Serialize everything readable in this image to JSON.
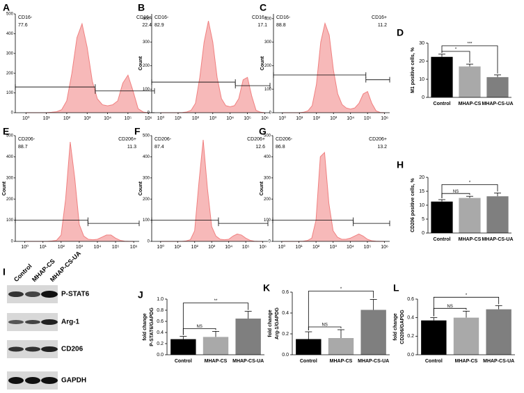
{
  "chart_data": [
    {
      "panel": "A",
      "type": "area",
      "x": [
        1,
        1.778,
        3.162,
        5.623,
        10,
        17.78,
        31.62,
        56.23,
        100,
        177.8,
        316.2,
        562.3,
        1000,
        1778,
        3162,
        5623,
        10000,
        17783,
        31623,
        56234,
        100000,
        177828,
        316228,
        562341,
        1000000
      ],
      "values": [
        0,
        0,
        0,
        0,
        0,
        2,
        5,
        15,
        60,
        200,
        380,
        450,
        330,
        160,
        70,
        40,
        35,
        40,
        60,
        150,
        190,
        110,
        20,
        3,
        0
      ],
      "color": "#f08080",
      "xscale": "log",
      "xlim": [
        0.3,
        2000000
      ],
      "xticks": [
        {
          "value": 1,
          "label": "10⁰"
        },
        {
          "value": 10,
          "label": "10¹"
        },
        {
          "value": 100,
          "label": "10²"
        },
        {
          "value": 1000,
          "label": "10³"
        },
        {
          "value": 10000,
          "label": "10⁴"
        },
        {
          "value": 100000,
          "label": "10⁵"
        },
        {
          "value": 1000000,
          "label": "10⁶"
        }
      ],
      "ylim": [
        0,
        500
      ],
      "yticks": [
        0,
        100,
        200,
        300,
        400,
        500
      ],
      "gates": [
        {
          "label": "CD16-",
          "value": 77.6,
          "range": [
            0.3,
            2500
          ],
          "level": 130
        },
        {
          "label": "CD16+",
          "value": 22.4,
          "range": [
            2500,
            2000000
          ],
          "level": 110
        }
      ]
    },
    {
      "panel": "B",
      "type": "area",
      "ylabel": "Count",
      "x": [
        1,
        1.778,
        3.162,
        5.623,
        10,
        17.78,
        31.62,
        56.23,
        100,
        177.8,
        316.2,
        562.3,
        1000,
        1778,
        3162,
        5623,
        10000,
        17783,
        31623,
        56234,
        100000,
        177828,
        316228,
        562341,
        1000000
      ],
      "values": [
        0,
        0,
        0,
        0,
        0,
        1,
        3,
        10,
        40,
        150,
        300,
        390,
        300,
        150,
        60,
        30,
        25,
        30,
        60,
        140,
        150,
        70,
        10,
        2,
        0
      ],
      "color": "#f08080",
      "xscale": "log",
      "xlim": [
        0.3,
        2000000
      ],
      "xticks": [
        {
          "value": 1,
          "label": "10⁰"
        },
        {
          "value": 10,
          "label": "10¹"
        },
        {
          "value": 100,
          "label": "10²"
        },
        {
          "value": 1000,
          "label": "10³"
        },
        {
          "value": 10000,
          "label": "10⁴"
        },
        {
          "value": 100000,
          "label": "10⁵"
        },
        {
          "value": 1000000,
          "label": "10⁶"
        }
      ],
      "ylim": [
        0,
        420
      ],
      "yticks": [
        0,
        100,
        200,
        300,
        400
      ],
      "gates": [
        {
          "label": "CD16-",
          "value": 82.9,
          "range": [
            0.3,
            20000
          ],
          "level": 130
        },
        {
          "label": "CD16+",
          "value": 17.1,
          "range": [
            20000,
            2000000
          ],
          "level": 115
        }
      ]
    },
    {
      "panel": "C",
      "type": "area",
      "ylabel": "Count",
      "x": [
        1,
        1.778,
        3.162,
        5.623,
        10,
        17.78,
        31.62,
        56.23,
        100,
        177.8,
        316.2,
        562.3,
        1000,
        1778,
        3162,
        5623,
        10000,
        17783,
        31623,
        56234,
        100000,
        177828,
        316228,
        562341,
        1000000
      ],
      "values": [
        0,
        0,
        0,
        0,
        0,
        2,
        8,
        30,
        120,
        300,
        380,
        330,
        180,
        80,
        35,
        20,
        15,
        20,
        40,
        80,
        90,
        40,
        8,
        1,
        0
      ],
      "color": "#f08080",
      "xscale": "log",
      "xlim": [
        0.3,
        2000000
      ],
      "xticks": [
        {
          "value": 1,
          "label": "10⁰"
        },
        {
          "value": 10,
          "label": "10¹"
        },
        {
          "value": 100,
          "label": "10²"
        },
        {
          "value": 1000,
          "label": "10³"
        },
        {
          "value": 10000,
          "label": "10⁴"
        },
        {
          "value": 100000,
          "label": "10⁵"
        },
        {
          "value": 1000000,
          "label": "10⁶"
        }
      ],
      "ylim": [
        0,
        420
      ],
      "yticks": [
        0,
        100,
        200,
        300,
        400
      ],
      "gates": [
        {
          "label": "CD16-",
          "value": 88.8,
          "range": [
            0.3,
            80000
          ],
          "level": 160
        },
        {
          "label": "CD16+",
          "value": 11.2,
          "range": [
            80000,
            2000000
          ],
          "level": 140
        }
      ]
    },
    {
      "panel": "D",
      "type": "bar",
      "ylabel": "M1 positive cells, %",
      "categories": [
        "Control",
        "MHAP-CS",
        "MHAP-CS-UA"
      ],
      "values": [
        22.4,
        17.1,
        11.2
      ],
      "errors": [
        1.5,
        1.3,
        1.2
      ],
      "colors": [
        "#000000",
        "#a9a9a9",
        "#7f7f7f"
      ],
      "ylim": [
        0,
        30
      ],
      "yticks": [
        0,
        10,
        20,
        30
      ],
      "comparisons": [
        {
          "between": [
            "Control",
            "MHAP-CS"
          ],
          "label": "*"
        },
        {
          "between": [
            "Control",
            "MHAP-CS-UA"
          ],
          "label": "***"
        }
      ]
    },
    {
      "panel": "E",
      "type": "area",
      "ylabel": "Count",
      "x": [
        1,
        1.778,
        3.162,
        5.623,
        10,
        17.78,
        31.62,
        56.23,
        100,
        177.8,
        316.2,
        562.3,
        1000,
        1778,
        3162,
        5623,
        10000,
        17783,
        31623,
        56234,
        100000,
        177828,
        316228,
        562341,
        1000000
      ],
      "values": [
        0,
        0,
        0,
        0,
        0,
        0,
        2,
        5,
        30,
        200,
        470,
        300,
        80,
        25,
        10,
        8,
        10,
        20,
        30,
        30,
        15,
        5,
        1,
        0,
        0
      ],
      "color": "#f08080",
      "xscale": "log",
      "xlim": [
        0.3,
        2000000
      ],
      "xticks": [
        {
          "value": 1,
          "label": "10⁰"
        },
        {
          "value": 10,
          "label": "10¹"
        },
        {
          "value": 100,
          "label": "10²"
        },
        {
          "value": 1000,
          "label": "10³"
        },
        {
          "value": 10000,
          "label": "10⁴"
        },
        {
          "value": 100000,
          "label": "10⁵"
        },
        {
          "value": 1000000,
          "label": "10⁶"
        }
      ],
      "ylim": [
        0,
        500
      ],
      "yticks": [
        0,
        100,
        200,
        300,
        400,
        500
      ],
      "gates": [
        {
          "label": "CD206-",
          "value": 88.7,
          "range": [
            0.3,
            3000
          ],
          "level": 100
        },
        {
          "label": "CD206+",
          "value": 11.3,
          "range": [
            3000,
            2000000
          ],
          "level": 85
        }
      ]
    },
    {
      "panel": "F",
      "type": "area",
      "ylabel": "Count",
      "x": [
        1,
        1.778,
        3.162,
        5.623,
        10,
        17.78,
        31.62,
        56.23,
        100,
        177.8,
        316.2,
        562.3,
        1000,
        1778,
        3162,
        5623,
        10000,
        17783,
        31623,
        56234,
        100000,
        177828,
        316228,
        562341,
        1000000
      ],
      "values": [
        0,
        0,
        0,
        0,
        0,
        0,
        2,
        8,
        50,
        280,
        480,
        250,
        70,
        25,
        10,
        8,
        10,
        25,
        35,
        30,
        15,
        5,
        1,
        0,
        0
      ],
      "color": "#f08080",
      "xscale": "log",
      "xlim": [
        0.3,
        2000000
      ],
      "xticks": [
        {
          "value": 1,
          "label": "10⁰"
        },
        {
          "value": 10,
          "label": "10¹"
        },
        {
          "value": 100,
          "label": "10²"
        },
        {
          "value": 1000,
          "label": "10³"
        },
        {
          "value": 10000,
          "label": "10⁴"
        },
        {
          "value": 100000,
          "label": "10⁵"
        },
        {
          "value": 1000000,
          "label": "10⁶"
        }
      ],
      "ylim": [
        0,
        500
      ],
      "yticks": [
        0,
        100,
        200,
        300,
        400,
        500
      ],
      "gates": [
        {
          "label": "CD206-",
          "value": 87.4,
          "range": [
            0.3,
            2500
          ],
          "level": 100
        },
        {
          "label": "CD206+",
          "value": 12.6,
          "range": [
            2500,
            2000000
          ],
          "level": 85
        }
      ]
    },
    {
      "panel": "G",
      "type": "area",
      "ylabel": "Count",
      "x": [
        1,
        1.778,
        3.162,
        5.623,
        10,
        17.78,
        31.62,
        56.23,
        100,
        177.8,
        316.2,
        562.3,
        1000,
        1778,
        3162,
        5623,
        10000,
        17783,
        31623,
        56234,
        100000,
        177828,
        316228,
        562341,
        1000000
      ],
      "values": [
        0,
        0,
        0,
        0,
        0,
        1,
        4,
        15,
        100,
        400,
        420,
        180,
        50,
        20,
        10,
        10,
        15,
        25,
        35,
        25,
        10,
        3,
        1,
        0,
        0
      ],
      "color": "#f08080",
      "xscale": "log",
      "xlim": [
        0.3,
        2000000
      ],
      "xticks": [
        {
          "value": 1,
          "label": "10⁰"
        },
        {
          "value": 10,
          "label": "10¹"
        },
        {
          "value": 100,
          "label": "10²"
        },
        {
          "value": 1000,
          "label": "10³"
        },
        {
          "value": 10000,
          "label": "10⁴"
        },
        {
          "value": 100000,
          "label": "10⁵"
        },
        {
          "value": 1000000,
          "label": "10⁶"
        }
      ],
      "ylim": [
        0,
        500
      ],
      "yticks": [
        0,
        100,
        200,
        300,
        400,
        500
      ],
      "gates": [
        {
          "label": "CD206-",
          "value": 86.8,
          "range": [
            0.3,
            15000
          ],
          "level": 100
        },
        {
          "label": "CD206+",
          "value": 13.2,
          "range": [
            15000,
            2000000
          ],
          "level": 85
        }
      ]
    },
    {
      "panel": "H",
      "type": "bar",
      "ylabel": "CD206 positive cells, %",
      "categories": [
        "Control",
        "MHAP-CS",
        "MHAP-CS-UA"
      ],
      "values": [
        11.3,
        12.6,
        13.2
      ],
      "errors": [
        0.7,
        0.6,
        1.2
      ],
      "colors": [
        "#000000",
        "#a9a9a9",
        "#7f7f7f"
      ],
      "ylim": [
        0,
        20
      ],
      "yticks": [
        0,
        5,
        10,
        15,
        20
      ],
      "comparisons": [
        {
          "between": [
            "Control",
            "MHAP-CS"
          ],
          "label": "NS"
        },
        {
          "between": [
            "Control",
            "MHAP-CS-UA"
          ],
          "label": "*"
        }
      ]
    },
    {
      "panel": "J",
      "type": "bar",
      "ylabel": [
        "P-STAT6/GAPDG",
        "fold change"
      ],
      "categories": [
        "Control",
        "MHAP-CS",
        "MHAP-CS-UA"
      ],
      "values": [
        0.28,
        0.32,
        0.65
      ],
      "errors": [
        0.05,
        0.1,
        0.13
      ],
      "colors": [
        "#000000",
        "#a9a9a9",
        "#7f7f7f"
      ],
      "ylim": [
        0,
        1
      ],
      "yticks": [
        {
          "value": 0,
          "label": "0.0"
        },
        0.2,
        0.4,
        0.6,
        0.8,
        {
          "value": 1,
          "label": "1.0"
        }
      ],
      "comparisons": [
        {
          "between": [
            "Control",
            "MHAP-CS"
          ],
          "label": "NS"
        },
        {
          "between": [
            "Control",
            "MHAP-CS-UA"
          ],
          "label": "**"
        }
      ]
    },
    {
      "panel": "K",
      "type": "bar",
      "ylabel": [
        "Arg-1/GAPDG",
        "fold change"
      ],
      "categories": [
        "Control",
        "MHAP-CS",
        "MHAP-CS-UA"
      ],
      "values": [
        0.15,
        0.16,
        0.43
      ],
      "errors": [
        0.07,
        0.08,
        0.1
      ],
      "colors": [
        "#000000",
        "#a9a9a9",
        "#7f7f7f"
      ],
      "ylim": [
        0,
        0.6
      ],
      "yticks": [
        {
          "value": 0,
          "label": "0.0"
        },
        0.2,
        0.4,
        0.6
      ],
      "comparisons": [
        {
          "between": [
            "Control",
            "MHAP-CS"
          ],
          "label": "NS"
        },
        {
          "between": [
            "Control",
            "MHAP-CS-UA"
          ],
          "label": "*"
        }
      ]
    },
    {
      "panel": "L",
      "type": "bar",
      "ylabel": [
        "CD206/GAPDG",
        "fold change"
      ],
      "categories": [
        "Control",
        "MHAP-CS",
        "MHAP-CS-UA"
      ],
      "values": [
        0.37,
        0.4,
        0.49
      ],
      "errors": [
        0.03,
        0.07,
        0.04
      ],
      "colors": [
        "#000000",
        "#a9a9a9",
        "#7f7f7f"
      ],
      "ylim": [
        0,
        0.6
      ],
      "yticks": [
        {
          "value": 0,
          "label": "0.0"
        },
        0.2,
        0.4,
        0.6
      ],
      "comparisons": [
        {
          "between": [
            "Control",
            "MHAP-CS"
          ],
          "label": "NS"
        },
        {
          "between": [
            "Control",
            "MHAP-CS-UA"
          ],
          "label": "*"
        }
      ]
    }
  ],
  "blot": {
    "panel": "I",
    "lanes": [
      "Control",
      "MHAP-CS",
      "MHAP-CS-UA"
    ],
    "rows": [
      "P-STAT6",
      "Arg-1",
      "CD206",
      "GAPDH"
    ]
  }
}
